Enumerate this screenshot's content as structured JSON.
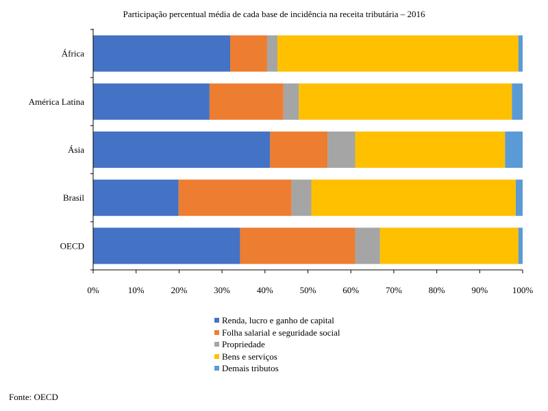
{
  "chart_data": {
    "type": "bar",
    "orientation": "horizontal",
    "stacked": true,
    "title": "Participação percentual média de cada base de incidência na receita tributária – 2016",
    "categories": [
      "África",
      "América Latina",
      "Ásia",
      "Brasil",
      "OECD"
    ],
    "x_ticks": [
      "0%",
      "10%",
      "20%",
      "30%",
      "40%",
      "50%",
      "60%",
      "70%",
      "80%",
      "90%",
      "100%"
    ],
    "xlim": [
      0,
      100
    ],
    "grid": false,
    "legend_position": "bottom",
    "series": [
      {
        "name": "Renda, lucro e ganho de capital",
        "color": "#4472C4",
        "values": [
          31.9,
          27.1,
          41.2,
          19.9,
          34.2
        ]
      },
      {
        "name": "Folha salarial e seguridade social",
        "color": "#ED7D31",
        "values": [
          8.6,
          17.2,
          13.4,
          26.3,
          26.8
        ]
      },
      {
        "name": "Propriedade",
        "color": "#A5A5A5",
        "values": [
          2.4,
          3.6,
          6.4,
          4.6,
          5.8
        ]
      },
      {
        "name": "Bens e serviços",
        "color": "#FFC000",
        "values": [
          56.1,
          49.6,
          34.9,
          47.6,
          32.2
        ]
      },
      {
        "name": "Demais tributos",
        "color": "#5B9BD5",
        "values": [
          1.0,
          2.5,
          4.1,
          1.6,
          1.0
        ]
      }
    ]
  },
  "footer": {
    "source": "Fonte: OECD"
  }
}
